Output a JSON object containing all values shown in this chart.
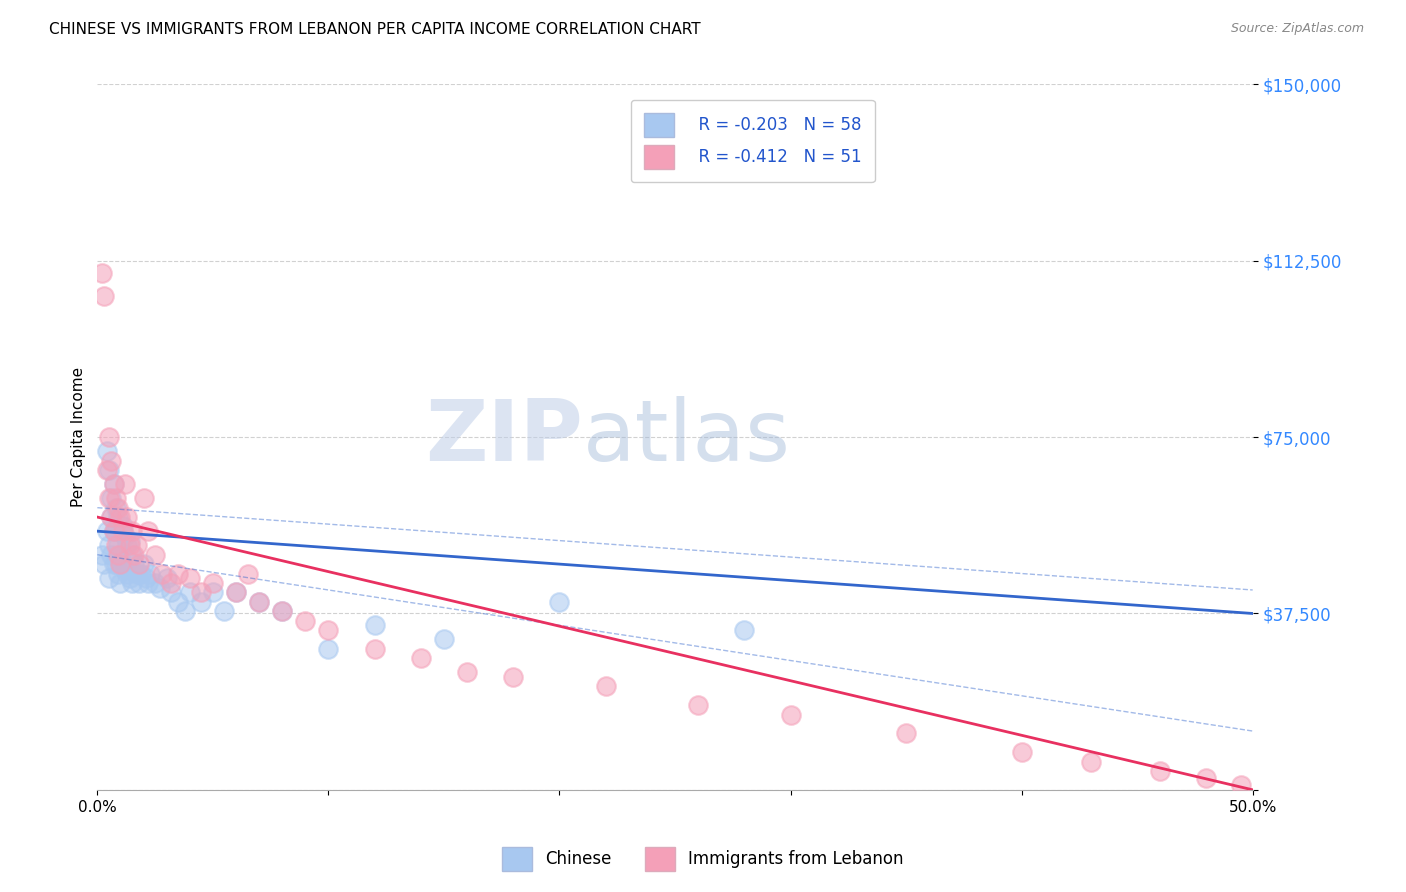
{
  "title": "CHINESE VS IMMIGRANTS FROM LEBANON PER CAPITA INCOME CORRELATION CHART",
  "source": "Source: ZipAtlas.com",
  "xlabel": "",
  "ylabel": "Per Capita Income",
  "xmin": 0.0,
  "xmax": 0.5,
  "ymin": 0,
  "ymax": 150000,
  "yticks": [
    0,
    37500,
    75000,
    112500,
    150000
  ],
  "ytick_labels": [
    "",
    "$37,500",
    "$75,000",
    "$112,500",
    "$150,000"
  ],
  "xticks": [
    0.0,
    0.1,
    0.2,
    0.3,
    0.4,
    0.5
  ],
  "xtick_labels": [
    "0.0%",
    "",
    "",
    "",
    "",
    "50.0%"
  ],
  "legend_r_chinese": "R = -0.203",
  "legend_n_chinese": "N = 58",
  "legend_r_lebanon": "R = -0.412",
  "legend_n_lebanon": "N = 51",
  "chinese_color": "#a8c8f0",
  "lebanon_color": "#f4a0b8",
  "chinese_line_color": "#3366cc",
  "lebanon_line_color": "#e83060",
  "watermark_zip": "ZIP",
  "watermark_atlas": "atlas",
  "chinese_x": [
    0.002,
    0.003,
    0.004,
    0.004,
    0.005,
    0.005,
    0.005,
    0.006,
    0.006,
    0.006,
    0.007,
    0.007,
    0.007,
    0.008,
    0.008,
    0.008,
    0.009,
    0.009,
    0.009,
    0.01,
    0.01,
    0.01,
    0.011,
    0.011,
    0.012,
    0.012,
    0.013,
    0.013,
    0.014,
    0.014,
    0.015,
    0.015,
    0.016,
    0.017,
    0.018,
    0.019,
    0.02,
    0.021,
    0.022,
    0.023,
    0.025,
    0.027,
    0.03,
    0.032,
    0.035,
    0.038,
    0.04,
    0.045,
    0.05,
    0.055,
    0.06,
    0.07,
    0.08,
    0.1,
    0.12,
    0.15,
    0.2,
    0.28
  ],
  "chinese_y": [
    50000,
    48000,
    72000,
    55000,
    68000,
    52000,
    45000,
    62000,
    58000,
    50000,
    65000,
    55000,
    48000,
    60000,
    55000,
    48000,
    58000,
    52000,
    46000,
    55000,
    50000,
    44000,
    56000,
    48000,
    54000,
    47000,
    52000,
    46000,
    53000,
    45000,
    50000,
    44000,
    48000,
    46000,
    44000,
    46000,
    48000,
    45000,
    44000,
    46000,
    44000,
    43000,
    45000,
    42000,
    40000,
    38000,
    42000,
    40000,
    42000,
    38000,
    42000,
    40000,
    38000,
    30000,
    35000,
    32000,
    40000,
    34000
  ],
  "lebanon_x": [
    0.002,
    0.003,
    0.004,
    0.005,
    0.005,
    0.006,
    0.006,
    0.007,
    0.007,
    0.008,
    0.008,
    0.009,
    0.009,
    0.01,
    0.01,
    0.011,
    0.012,
    0.013,
    0.014,
    0.015,
    0.016,
    0.017,
    0.018,
    0.02,
    0.022,
    0.025,
    0.028,
    0.032,
    0.035,
    0.04,
    0.045,
    0.05,
    0.06,
    0.065,
    0.07,
    0.08,
    0.09,
    0.1,
    0.12,
    0.14,
    0.16,
    0.18,
    0.22,
    0.26,
    0.3,
    0.35,
    0.4,
    0.43,
    0.46,
    0.48,
    0.495
  ],
  "lebanon_y": [
    110000,
    105000,
    68000,
    75000,
    62000,
    70000,
    58000,
    65000,
    55000,
    62000,
    52000,
    60000,
    50000,
    58000,
    48000,
    55000,
    65000,
    58000,
    52000,
    55000,
    50000,
    52000,
    48000,
    62000,
    55000,
    50000,
    46000,
    44000,
    46000,
    45000,
    42000,
    44000,
    42000,
    46000,
    40000,
    38000,
    36000,
    34000,
    30000,
    28000,
    25000,
    24000,
    22000,
    18000,
    16000,
    12000,
    8000,
    6000,
    4000,
    2500,
    1000
  ]
}
